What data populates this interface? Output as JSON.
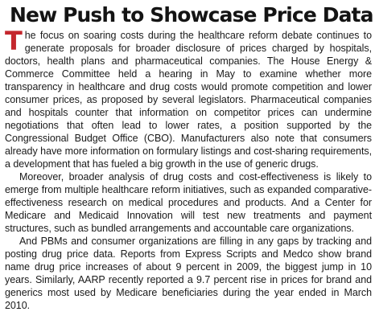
{
  "article": {
    "headline": "New Push to Showcase Price Data",
    "drop_cap": "T",
    "paragraphs": [
      {
        "first_text": "he focus on soaring costs during the healthcare reform debate continues to generate proposals for broader disclosure of prices charged by hospitals, doctors, health plans and pharmaceutical companies. The House Energy & Commerce Committee held a hearing in May to examine whether more transparency in healthcare and drug costs would promote competition and lower consumer prices, as proposed by several legislators. Pharmaceutical companies and hospitals counter that information on competitor prices can undermine negotiations that often lead to lower rates, a position supported by the Congressional Budget Office (CBO). Manufacturers also note that consumers already have more information on formulary listings and cost-sharing requirements, a development that has fueled a big growth in the use of generic drugs."
      },
      {
        "text": "Moreover, broader analysis of drug costs and cost-effectiveness is likely to emerge from multiple healthcare reform initiatives, such as expanded comparative-effectiveness research on medical procedures and products. And a Center for Medicare and Medicaid Innovation will test new treatments and payment structures, such as bundled arrangements and accountable care organizations."
      },
      {
        "text": "And PBMs and consumer organizations are filling in any gaps by tracking and posting drug price data. Reports from Express Scripts and Medco show brand name drug price increases of about 9 percent in 2009, the biggest jump in 10 years. Similarly, AARP recently reported a 9.7 percent rise in prices for brand and generics most used by Medicare beneficiaries during the year ended in March 2010."
      }
    ]
  },
  "colors": {
    "drop_cap": "#c4272d",
    "headline": "#141414",
    "body_text": "#1a1a1a",
    "background": "#ffffff"
  }
}
